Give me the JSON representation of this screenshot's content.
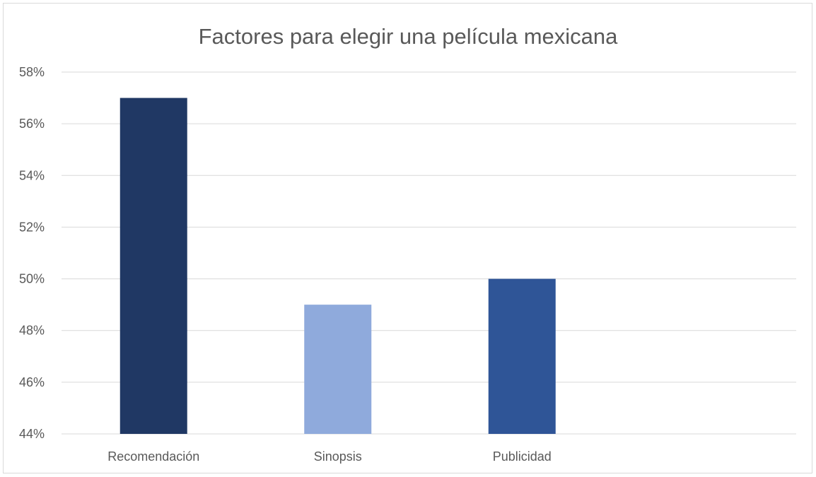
{
  "chart_data": {
    "type": "bar",
    "title": "Factores para elegir una película mexicana",
    "xlabel": "",
    "ylabel": "",
    "categories": [
      "Recomendación",
      "Sinopsis",
      "Publicidad"
    ],
    "values": [
      0.57,
      0.49,
      0.5
    ],
    "bar_colors": [
      "#203864",
      "#8faadc",
      "#2f5597"
    ],
    "ylim": [
      0.44,
      0.58
    ],
    "yticks": [
      0.44,
      0.46,
      0.48,
      0.5,
      0.52,
      0.54,
      0.56,
      0.58
    ],
    "ytick_labels": [
      "44%",
      "46%",
      "48%",
      "50%",
      "52%",
      "54%",
      "56%",
      "58%"
    ],
    "grid": true,
    "legend": "none"
  }
}
